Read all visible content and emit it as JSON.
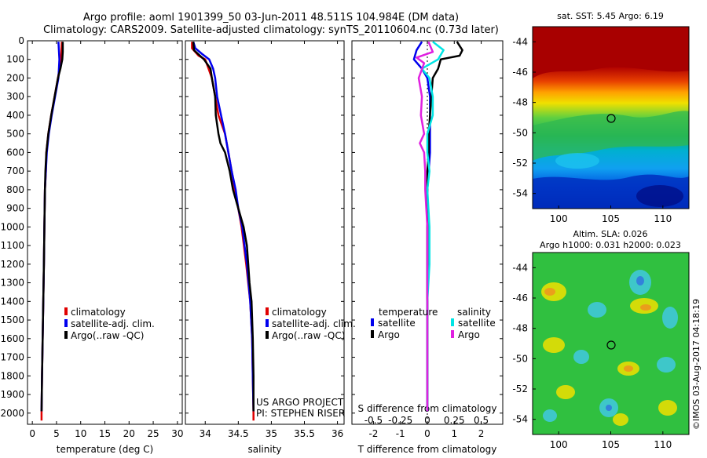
{
  "header": {
    "title_line1": "Argo profile: aoml 1901399_50 03-Jun-2011 48.511S 104.984E (DM data)",
    "title_line2": "Climatology: CARS2009. Satellite-adjusted climatology: synTS_20110604.nc (0.73d later)"
  },
  "colors": {
    "climatology": "#e00000",
    "satellite_adj": "#0000ee",
    "argo": "#000000",
    "sal_satellite": "#00e5e5",
    "sal_argo": "#e020e0"
  },
  "chart_data": [
    {
      "type": "line",
      "name": "temperature-profile",
      "xlabel": "temperature (deg C)",
      "ylabel": "",
      "xlim": [
        -1,
        31
      ],
      "ylim": [
        2060,
        0
      ],
      "x_ticks": [
        "0",
        "5",
        "10",
        "15",
        "20",
        "25",
        "30"
      ],
      "x_tick_values": [
        0,
        5,
        10,
        15,
        20,
        25,
        30
      ],
      "y_ticks": [
        "0",
        "100",
        "200",
        "300",
        "400",
        "500",
        "600",
        "700",
        "800",
        "900",
        "1000",
        "1100",
        "1200",
        "1300",
        "1400",
        "1500",
        "1600",
        "1700",
        "1800",
        "1900",
        "2000"
      ],
      "y_tick_values": [
        0,
        100,
        200,
        300,
        400,
        500,
        600,
        700,
        800,
        900,
        1000,
        1100,
        1200,
        1300,
        1400,
        1500,
        1600,
        1700,
        1800,
        1900,
        2000
      ],
      "legend": [
        "climatology",
        "satellite-adj. clim.",
        "Argo(..raw -QC)"
      ],
      "legend_position": "center",
      "series": [
        {
          "name": "climatology",
          "color": "#e00000",
          "depth": [
            5,
            100,
            200,
            300,
            400,
            500,
            600,
            700,
            800,
            1000,
            1200,
            1500,
            1800,
            2000,
            2040
          ],
          "values": [
            6.1,
            5.9,
            5.3,
            4.6,
            3.9,
            3.3,
            2.9,
            2.8,
            2.6,
            2.5,
            2.4,
            2.2,
            2.0,
            1.9,
            1.9
          ]
        },
        {
          "name": "satellite-adj. clim.",
          "color": "#0000ee",
          "depth": [
            5,
            100,
            200,
            300,
            400,
            500,
            600,
            700,
            800,
            1000,
            1200,
            1500,
            1800,
            1990
          ],
          "values": [
            5.4,
            5.6,
            5.4,
            4.7,
            4.0,
            3.4,
            3.0,
            2.8,
            2.6,
            2.5,
            2.4,
            2.2,
            2.0,
            1.9
          ]
        },
        {
          "name": "Argo(..raw -QC)",
          "color": "#000000",
          "depth": [
            5,
            60,
            100,
            150,
            200,
            300,
            400,
            500,
            600,
            700,
            800,
            1000,
            1200,
            1500,
            1800,
            1990
          ],
          "values": [
            6.3,
            6.3,
            6.2,
            5.8,
            5.3,
            4.6,
            3.9,
            3.3,
            2.9,
            2.7,
            2.6,
            2.5,
            2.4,
            2.2,
            2.0,
            1.9
          ]
        }
      ],
      "annotations": []
    },
    {
      "type": "line",
      "name": "salinity-profile",
      "xlabel": "salinity",
      "xlim": [
        33.7,
        36.1
      ],
      "ylim": [
        2060,
        0
      ],
      "x_ticks": [
        "34",
        "34.5",
        "35",
        "35.5",
        "36"
      ],
      "x_tick_values": [
        34,
        34.5,
        35,
        35.5,
        36
      ],
      "legend": [
        "climatology",
        "satellite-adj. clim.",
        "Argo(..raw -QC)"
      ],
      "legend_position": "center",
      "series": [
        {
          "name": "climatology",
          "color": "#e00000",
          "depth": [
            5,
            40,
            80,
            100,
            150,
            200,
            300,
            400,
            500,
            600,
            700,
            800,
            900,
            1000,
            1200,
            1400,
            1600,
            1800,
            2000,
            2040
          ],
          "values": [
            33.8,
            33.8,
            33.9,
            34.0,
            34.05,
            34.1,
            34.15,
            34.2,
            34.3,
            34.35,
            34.4,
            34.45,
            34.5,
            34.55,
            34.62,
            34.68,
            34.71,
            34.72,
            34.73,
            34.73
          ]
        },
        {
          "name": "satellite-adj. clim.",
          "color": "#0000ee",
          "depth": [
            5,
            40,
            70,
            100,
            150,
            200,
            300,
            400,
            500,
            600,
            700,
            800,
            900,
            1000,
            1200,
            1400,
            1600,
            1800,
            1990
          ],
          "values": [
            33.82,
            33.85,
            33.95,
            34.06,
            34.12,
            34.15,
            34.18,
            34.24,
            34.3,
            34.35,
            34.4,
            34.46,
            34.5,
            34.56,
            34.63,
            34.68,
            34.71,
            34.72,
            34.73
          ]
        },
        {
          "name": "Argo(..raw -QC)",
          "color": "#000000",
          "depth": [
            5,
            50,
            100,
            150,
            200,
            300,
            400,
            500,
            550,
            600,
            700,
            800,
            900,
            1000,
            1100,
            1200,
            1300,
            1400,
            1500,
            1600,
            1800,
            1990
          ],
          "values": [
            33.82,
            33.83,
            33.98,
            34.08,
            34.1,
            34.15,
            34.16,
            34.2,
            34.23,
            34.3,
            34.37,
            34.42,
            34.5,
            34.58,
            34.63,
            34.65,
            34.67,
            34.7,
            34.71,
            34.72,
            34.73,
            34.73
          ]
        }
      ],
      "annotations": [
        "US ARGO PROJECT",
        "PI: STEPHEN RISER"
      ]
    },
    {
      "type": "line",
      "name": "difference-profile",
      "xlabel": "T difference from climatology",
      "top_label": "S difference from climatology",
      "xlim": [
        -2.8,
        2.8
      ],
      "ylim": [
        2060,
        0
      ],
      "x_ticks": [
        "-2",
        "-1",
        "0",
        "1",
        "2"
      ],
      "x_tick_values": [
        -2,
        -1,
        0,
        1,
        2
      ],
      "s_ticks": [
        "-0.5",
        "-0.25",
        "0",
        "0.25",
        "0.5"
      ],
      "s_tick_values": [
        -0.5,
        -0.25,
        0,
        0.25,
        0.5
      ],
      "legend_titles": [
        "temperature",
        "salinity"
      ],
      "legend": [
        "satellite",
        "Argo",
        "satellite",
        "Argo"
      ],
      "legend_position": "center",
      "series": [
        {
          "name": "T satellite",
          "color": "#0000ee",
          "depth": [
            5,
            50,
            100,
            150,
            200,
            300,
            400,
            500,
            600,
            700,
            800,
            1000,
            1200,
            1500,
            1800,
            1990
          ],
          "values": [
            -0.2,
            -0.4,
            -0.5,
            -0.2,
            0.0,
            0.1,
            0.1,
            0.1,
            0.1,
            0.05,
            0.0,
            0.0,
            0.0,
            0.0,
            0.0,
            0.0
          ]
        },
        {
          "name": "T Argo",
          "color": "#000000",
          "depth": [
            5,
            50,
            80,
            100,
            150,
            200,
            300,
            400,
            500,
            600,
            700,
            800,
            1000,
            1200,
            1500,
            1800,
            1990
          ],
          "values": [
            1.1,
            1.3,
            1.2,
            0.5,
            0.4,
            0.2,
            0.15,
            0.1,
            0.05,
            0.05,
            0.0,
            0.0,
            0.0,
            0.0,
            0.0,
            0.0,
            0.0
          ]
        },
        {
          "name": "S satellite",
          "color": "#00e5e5",
          "depth": [
            5,
            50,
            100,
            150,
            200,
            300,
            400,
            500,
            600,
            700,
            800,
            1000,
            1200,
            1400,
            1600,
            1800,
            1990
          ],
          "values": [
            0.05,
            0.15,
            0.1,
            -0.05,
            0.02,
            0.05,
            0.05,
            0.0,
            0.0,
            0.02,
            0.0,
            0.02,
            0.02,
            0.0,
            0.0,
            0.0,
            0.0
          ]
        },
        {
          "name": "S Argo",
          "color": "#e020e0",
          "depth": [
            5,
            60,
            90,
            120,
            200,
            300,
            400,
            500,
            550,
            600,
            700,
            800,
            1000,
            1200,
            1400,
            1600,
            1800,
            1990
          ],
          "values": [
            0.01,
            0.05,
            -0.1,
            -0.03,
            -0.08,
            -0.05,
            -0.06,
            -0.03,
            -0.07,
            -0.03,
            -0.02,
            -0.02,
            0.0,
            0.0,
            0.0,
            0.0,
            0.0,
            0.0
          ]
        }
      ],
      "annotations": []
    },
    {
      "type": "heatmap",
      "name": "sst-map",
      "title": "sat. SST: 5.45  Argo: 6.19",
      "x_ticks": [
        "100",
        "105",
        "110"
      ],
      "x_tick_values": [
        100,
        105,
        110
      ],
      "y_ticks": [
        "-44",
        "-46",
        "-48",
        "-50",
        "-52",
        "-54"
      ],
      "y_tick_values": [
        -44,
        -46,
        -48,
        -50,
        -52,
        -54
      ],
      "xlim": [
        97.5,
        112.5
      ],
      "ylim": [
        -55,
        -43
      ],
      "marker": {
        "lon": 104.984,
        "lat": -48.511
      }
    },
    {
      "type": "heatmap",
      "name": "sla-map",
      "title_line1": "Altim. SLA: 0.026",
      "title_line2": "Argo h1000: 0.031  h2000: 0.023",
      "x_ticks": [
        "100",
        "105",
        "110"
      ],
      "x_tick_values": [
        100,
        105,
        110
      ],
      "y_ticks": [
        "-44",
        "-46",
        "-48",
        "-50",
        "-52",
        "-54"
      ],
      "y_tick_values": [
        -44,
        -46,
        -48,
        -50,
        -52,
        -54
      ],
      "xlim": [
        97.5,
        112.5
      ],
      "ylim": [
        -55,
        -43
      ],
      "marker": {
        "lon": 104.984,
        "lat": -48.511
      }
    }
  ],
  "footer": {
    "imos_stamp": "©IMOS 03-Aug-2017 04:18:19"
  }
}
